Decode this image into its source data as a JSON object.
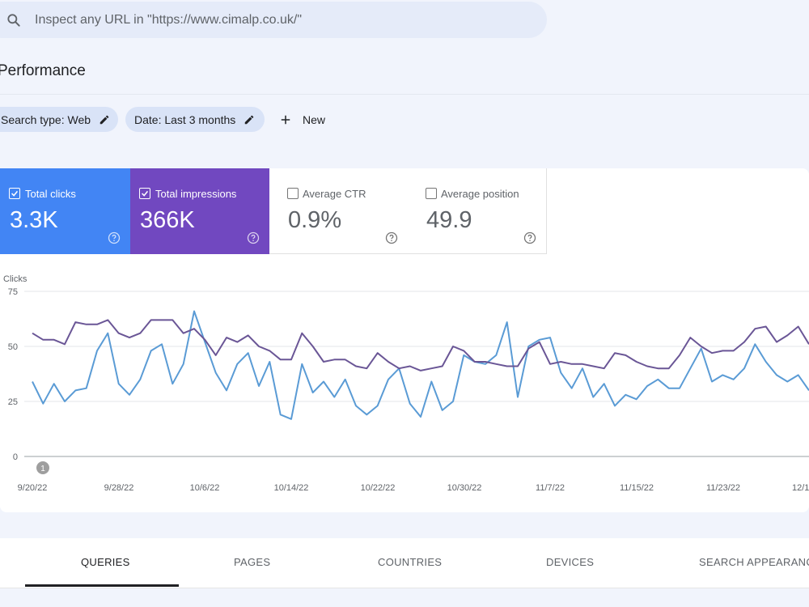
{
  "search": {
    "placeholder": "Inspect any URL in \"https://www.cimalp.co.uk/\""
  },
  "page": {
    "title": "Performance"
  },
  "filters": {
    "search_type": "Search type: Web",
    "date": "Date: Last 3 months",
    "new_label": "New"
  },
  "metrics": {
    "clicks": {
      "label": "Total clicks",
      "value": "3.3K",
      "checked": true,
      "color": "#4285f4"
    },
    "impressions": {
      "label": "Total impressions",
      "value": "366K",
      "checked": true,
      "color": "#7148c0"
    },
    "ctr": {
      "label": "Average CTR",
      "value": "0.9%",
      "checked": false
    },
    "position": {
      "label": "Average position",
      "value": "49.9",
      "checked": false
    }
  },
  "chart_data": {
    "type": "line",
    "ylabel": "Clicks",
    "ylim": [
      0,
      75
    ],
    "yticks": [
      0,
      25,
      50,
      75
    ],
    "x_tick_labels": [
      "9/20/22",
      "9/28/22",
      "10/6/22",
      "10/14/22",
      "10/22/22",
      "10/30/22",
      "11/7/22",
      "11/15/22",
      "11/23/22",
      "12/1"
    ],
    "annotation": "1",
    "series": [
      {
        "color": "#5a9bd5",
        "values": [
          34,
          24,
          33,
          25,
          30,
          31,
          48,
          56,
          33,
          28,
          35,
          48,
          51,
          33,
          42,
          66,
          52,
          38,
          30,
          42,
          47,
          32,
          43,
          19,
          17,
          42,
          29,
          34,
          27,
          35,
          23,
          19,
          23,
          35,
          40,
          24,
          18,
          34,
          21,
          25,
          46,
          43,
          42,
          46,
          61,
          27,
          50,
          53,
          54,
          38,
          31,
          40,
          27,
          33,
          23,
          28,
          26,
          32,
          35,
          31,
          31,
          40,
          49,
          34,
          37,
          35,
          40,
          51,
          43,
          37,
          34,
          37,
          30
        ]
      },
      {
        "color": "#6a5696",
        "values": [
          56,
          53,
          53,
          51,
          61,
          60,
          60,
          62,
          56,
          54,
          56,
          62,
          62,
          62,
          56,
          58,
          53,
          46,
          54,
          52,
          55,
          50,
          48,
          44,
          44,
          56,
          50,
          43,
          44,
          44,
          41,
          40,
          47,
          43,
          40,
          41,
          39,
          40,
          41,
          50,
          48,
          43,
          43,
          42,
          41,
          41,
          49,
          52,
          42,
          43,
          42,
          42,
          41,
          40,
          47,
          46,
          43,
          41,
          40,
          40,
          46,
          54,
          50,
          47,
          48,
          48,
          52,
          58,
          59,
          52,
          55,
          59,
          51
        ]
      }
    ]
  },
  "tabs": [
    {
      "label": "QUERIES"
    },
    {
      "label": "PAGES"
    },
    {
      "label": "COUNTRIES"
    },
    {
      "label": "DEVICES"
    },
    {
      "label": "SEARCH APPEARANCE"
    }
  ]
}
